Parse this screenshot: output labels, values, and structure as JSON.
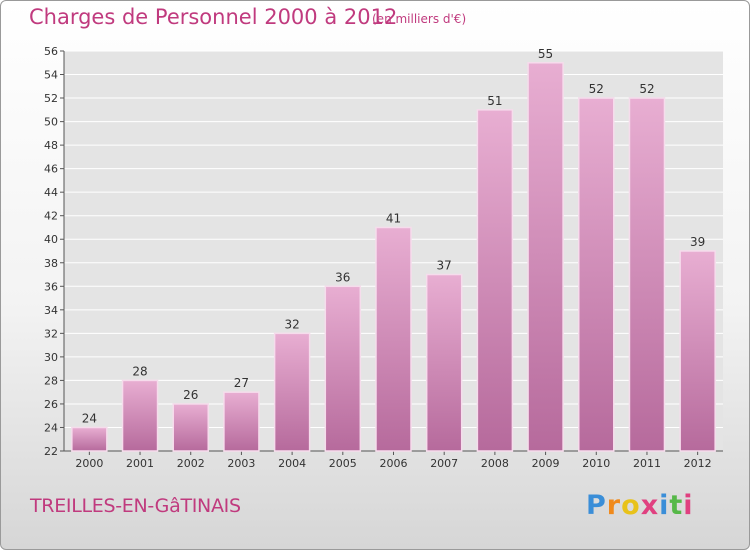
{
  "header": {
    "title": "Charges de Personnel 2000 à 2012",
    "subtitle": "(en milliers d'€)"
  },
  "footer": {
    "commune": "TREILLES-EN-GâTINAIS",
    "brand": [
      "P",
      "r",
      "o",
      "x",
      "i",
      "t",
      "i"
    ],
    "brand_colors": [
      "#3a8ed8",
      "#f08a1c",
      "#e8c21a",
      "#e04080",
      "#3a8ed8",
      "#56b848",
      "#e04080"
    ]
  },
  "colors": {
    "bar_top": "#e8aed2",
    "bar_bottom": "#b66a9c",
    "bar_edge": "#f6dcec",
    "grid": "#ffffff",
    "text_accent": "#c03a7e"
  },
  "chart_data": {
    "type": "bar",
    "categories": [
      "2000",
      "2001",
      "2002",
      "2003",
      "2004",
      "2005",
      "2006",
      "2007",
      "2008",
      "2009",
      "2010",
      "2011",
      "2012"
    ],
    "values": [
      24,
      28,
      26,
      27,
      32,
      36,
      41,
      37,
      51,
      55,
      52,
      52,
      39
    ],
    "title": "Charges de Personnel 2000 à 2012",
    "subtitle": "(en milliers d'€)",
    "ylim": [
      22,
      56
    ],
    "yticks": [
      22,
      24,
      26,
      28,
      30,
      32,
      34,
      36,
      38,
      40,
      42,
      44,
      46,
      48,
      50,
      52,
      54,
      56
    ],
    "grid": true,
    "data_labels": true
  }
}
